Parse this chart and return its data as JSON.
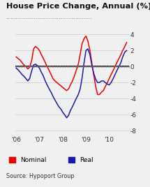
{
  "title": "House Price Change, Annual (%)",
  "source": "Source: Hypoport Group",
  "background_color": "#f0f0f0",
  "plot_bg_color": "#f0f0f0",
  "nominal_color": "#ee0000",
  "real_color": "#1a1aaa",
  "ylim": [
    -8.5,
    4.8
  ],
  "yticks": [
    -8,
    -6,
    -4,
    -2,
    0,
    2,
    4
  ],
  "xlabel_labels": [
    "'06",
    "'07",
    "'08",
    "'09",
    "'10"
  ],
  "nominal_x": [
    0,
    0.08,
    0.17,
    0.25,
    0.33,
    0.42,
    0.5,
    0.58,
    0.67,
    0.75,
    0.83,
    0.92,
    1.0,
    1.08,
    1.17,
    1.25,
    1.33,
    1.42,
    1.5,
    1.58,
    1.67,
    1.75,
    1.83,
    1.92,
    2.0,
    2.08,
    2.17,
    2.25,
    2.33,
    2.42,
    2.5,
    2.58,
    2.67,
    2.75,
    2.83,
    2.92,
    3.0,
    3.08,
    3.17,
    3.25,
    3.33,
    3.42,
    3.5,
    3.58,
    3.67,
    3.75,
    3.83,
    3.92,
    4.0,
    4.08,
    4.17,
    4.25,
    4.33,
    4.42,
    4.5,
    4.58,
    4.67,
    4.75
  ],
  "nominal_y": [
    1.2,
    1.0,
    0.8,
    0.5,
    0.2,
    0.0,
    -0.3,
    -0.1,
    0.8,
    2.2,
    2.5,
    2.3,
    2.0,
    1.5,
    1.0,
    0.5,
    0.0,
    -0.5,
    -1.0,
    -1.5,
    -1.8,
    -2.0,
    -2.2,
    -2.4,
    -2.6,
    -2.8,
    -3.0,
    -2.8,
    -2.3,
    -1.8,
    -1.2,
    -0.5,
    0.3,
    1.5,
    2.8,
    3.5,
    3.8,
    3.2,
    2.0,
    0.5,
    -1.0,
    -2.5,
    -3.5,
    -3.5,
    -3.2,
    -3.0,
    -2.5,
    -2.0,
    -1.5,
    -1.0,
    -0.5,
    0.0,
    0.5,
    1.0,
    1.5,
    2.0,
    2.5,
    3.0
  ],
  "real_x": [
    0,
    0.08,
    0.17,
    0.25,
    0.33,
    0.42,
    0.5,
    0.58,
    0.67,
    0.75,
    0.83,
    0.92,
    1.0,
    1.08,
    1.17,
    1.25,
    1.33,
    1.42,
    1.5,
    1.58,
    1.67,
    1.75,
    1.83,
    1.92,
    2.0,
    2.08,
    2.17,
    2.25,
    2.33,
    2.42,
    2.5,
    2.58,
    2.67,
    2.75,
    2.83,
    2.92,
    3.0,
    3.08,
    3.17,
    3.25,
    3.33,
    3.42,
    3.5,
    3.58,
    3.67,
    3.75,
    3.83,
    3.92,
    4.0,
    4.08,
    4.17,
    4.25,
    4.33,
    4.42,
    4.5,
    4.58,
    4.67,
    4.75
  ],
  "real_y": [
    -0.2,
    -0.4,
    -0.7,
    -1.0,
    -1.2,
    -1.5,
    -1.8,
    -1.5,
    -0.5,
    0.2,
    0.3,
    0.1,
    -0.2,
    -0.7,
    -1.2,
    -1.8,
    -2.3,
    -2.8,
    -3.2,
    -3.7,
    -4.2,
    -4.6,
    -5.0,
    -5.3,
    -5.7,
    -6.0,
    -6.4,
    -6.1,
    -5.5,
    -5.0,
    -4.5,
    -4.0,
    -3.5,
    -2.8,
    -1.5,
    0.5,
    2.0,
    2.2,
    1.5,
    0.2,
    -0.8,
    -1.6,
    -2.0,
    -2.0,
    -1.8,
    -1.8,
    -2.0,
    -2.2,
    -2.3,
    -2.0,
    -1.5,
    -1.0,
    -0.5,
    0.0,
    0.5,
    1.2,
    1.8,
    2.0
  ]
}
